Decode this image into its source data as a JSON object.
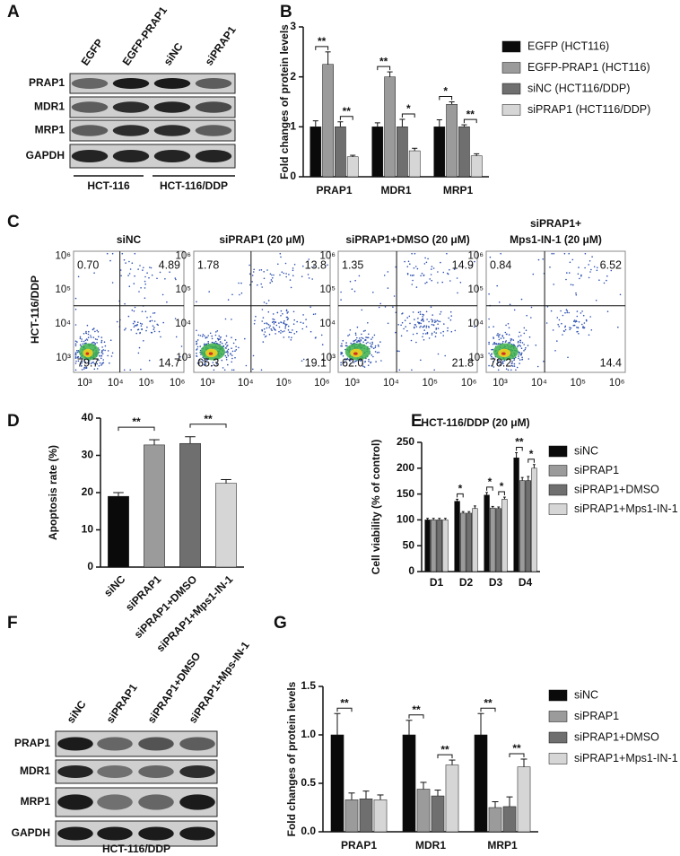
{
  "panel_labels": [
    "A",
    "B",
    "C",
    "D",
    "E",
    "F",
    "G"
  ],
  "blot_a": {
    "columns": [
      "EGFP",
      "EGFP-PRAP1",
      "siNC",
      "siPRAP1"
    ],
    "rows": [
      "PRAP1",
      "MDR1",
      "MRP1",
      "GAPDH"
    ],
    "groups": [
      "HCT-116",
      "HCT-116/DDP"
    ]
  },
  "flow": {
    "y_label": "HCT-116/DDP",
    "axis_ticks": [
      "10³",
      "10⁴",
      "10⁵",
      "10⁶"
    ],
    "plots": [
      {
        "title": [
          "siNC"
        ],
        "quadrants": [
          "0.70",
          "4.89",
          "79.7",
          "14.7"
        ]
      },
      {
        "title": [
          "siPRAP1 (20 μM)"
        ],
        "quadrants": [
          "1.78",
          "13.8",
          "65.3",
          "19.1"
        ]
      },
      {
        "title": [
          "siPRAP1+DMSO (20 μM)"
        ],
        "quadrants": [
          "1.35",
          "14.9",
          "62.0",
          "21.8"
        ]
      },
      {
        "title": [
          "siPRAP1+",
          "Mps1-IN-1 (20 μM)"
        ],
        "quadrants": [
          "0.84",
          "6.52",
          "78.2",
          "14.4"
        ]
      }
    ]
  },
  "blot_f": {
    "columns": [
      "siNC",
      "siPRAP1",
      "siPRAP1+DMSO",
      "siPRAP1+Mps-IN-1"
    ],
    "rows": [
      "PRAP1",
      "MDR1",
      "MRP1",
      "GAPDH"
    ],
    "caption": "HCT-116/DDP"
  },
  "chart_data": [
    {
      "type": "bar",
      "y_label": "Fold changes of protein levels",
      "categories": [
        "PRAP1",
        "MDR1",
        "MRP1"
      ],
      "series": [
        {
          "name": "EGFP (HCT116)",
          "color": "#0a0a0a",
          "values": [
            1.0,
            1.0,
            1.0
          ],
          "errors": [
            0.12,
            0.08,
            0.14
          ]
        },
        {
          "name": "EGFP-PRAP1 (HCT116)",
          "color": "#9b9b9b",
          "values": [
            2.25,
            2.0,
            1.45
          ],
          "errors": [
            0.25,
            0.1,
            0.05
          ]
        },
        {
          "name": "siNC  (HCT116/DDP)",
          "color": "#6f6f6f",
          "values": [
            1.0,
            1.0,
            1.0
          ],
          "errors": [
            0.1,
            0.15,
            0.04
          ]
        },
        {
          "name": "siPRAP1 (HCT116/DDP)",
          "color": "#d6d6d6",
          "values": [
            0.4,
            0.52,
            0.42
          ],
          "errors": [
            0.03,
            0.05,
            0.04
          ]
        }
      ],
      "ylim": [
        0,
        3
      ],
      "yticks": [
        0,
        1,
        2,
        3
      ],
      "annotations": [
        "**",
        "**",
        "**",
        "*",
        "*",
        "**"
      ]
    },
    {
      "type": "bar",
      "y_label": "Apoptosis rate (%)",
      "categories": [
        "siNC",
        "siPRAP1",
        "siPRAP1+DMSO",
        "siPRAP1+Mps1-IN-1"
      ],
      "values": [
        19,
        32.8,
        33.2,
        22.5
      ],
      "errors": [
        1.0,
        1.4,
        1.8,
        1.0
      ],
      "colors": [
        "#0a0a0a",
        "#9b9b9b",
        "#6f6f6f",
        "#d6d6d6"
      ],
      "ylim": [
        0,
        40
      ],
      "yticks": [
        0,
        10,
        20,
        30,
        40
      ],
      "annotations": [
        "**",
        "**"
      ]
    },
    {
      "type": "bar",
      "title": "HCT-116/DDP (20 μM)",
      "y_label": "Cell viability (% of control)",
      "categories": [
        "D1",
        "D2",
        "D3",
        "D4"
      ],
      "series": [
        {
          "name": "siNC",
          "color": "#0a0a0a",
          "values": [
            100,
            136,
            148,
            220
          ],
          "errors": [
            3,
            4,
            5,
            10
          ]
        },
        {
          "name": "siPRAP1",
          "color": "#9b9b9b",
          "values": [
            100,
            113,
            123,
            176
          ],
          "errors": [
            3,
            3,
            3,
            6
          ]
        },
        {
          "name": "siPRAP1+DMSO",
          "color": "#6f6f6f",
          "values": [
            100,
            113,
            122,
            176
          ],
          "errors": [
            3,
            3,
            3,
            8
          ]
        },
        {
          "name": "siPRAP1+Mps1-IN-1",
          "color": "#d6d6d6",
          "values": [
            100,
            122,
            140,
            200
          ],
          "errors": [
            3,
            5,
            4,
            7
          ]
        }
      ],
      "ylim": [
        0,
        250
      ],
      "yticks": [
        0,
        50,
        100,
        150,
        200,
        250
      ],
      "annotations": [
        "*",
        "*",
        "*",
        "**",
        "*"
      ]
    },
    {
      "type": "bar",
      "y_label": "Fold changes of protein levels",
      "categories": [
        "PRAP1",
        "MDR1",
        "MRP1"
      ],
      "series": [
        {
          "name": "siNC",
          "color": "#0a0a0a",
          "values": [
            1.0,
            1.0,
            1.0
          ],
          "errors": [
            0.22,
            0.15,
            0.22
          ]
        },
        {
          "name": "siPRAP1",
          "color": "#9b9b9b",
          "values": [
            0.33,
            0.44,
            0.25
          ],
          "errors": [
            0.07,
            0.07,
            0.06
          ]
        },
        {
          "name": "siPRAP1+DMSO",
          "color": "#6f6f6f",
          "values": [
            0.34,
            0.37,
            0.26
          ],
          "errors": [
            0.08,
            0.06,
            0.1
          ]
        },
        {
          "name": "siPRAP1+Mps1-IN-1",
          "color": "#d6d6d6",
          "values": [
            0.33,
            0.69,
            0.67
          ],
          "errors": [
            0.05,
            0.05,
            0.08
          ]
        }
      ],
      "ylim": [
        0,
        1.5
      ],
      "yticks": [
        {
          "value": 0,
          "label": "0.0"
        },
        0.5,
        {
          "value": 1,
          "label": "1.0"
        },
        1.5
      ],
      "annotations": [
        "**",
        "**",
        "**",
        "**",
        "**"
      ]
    }
  ]
}
